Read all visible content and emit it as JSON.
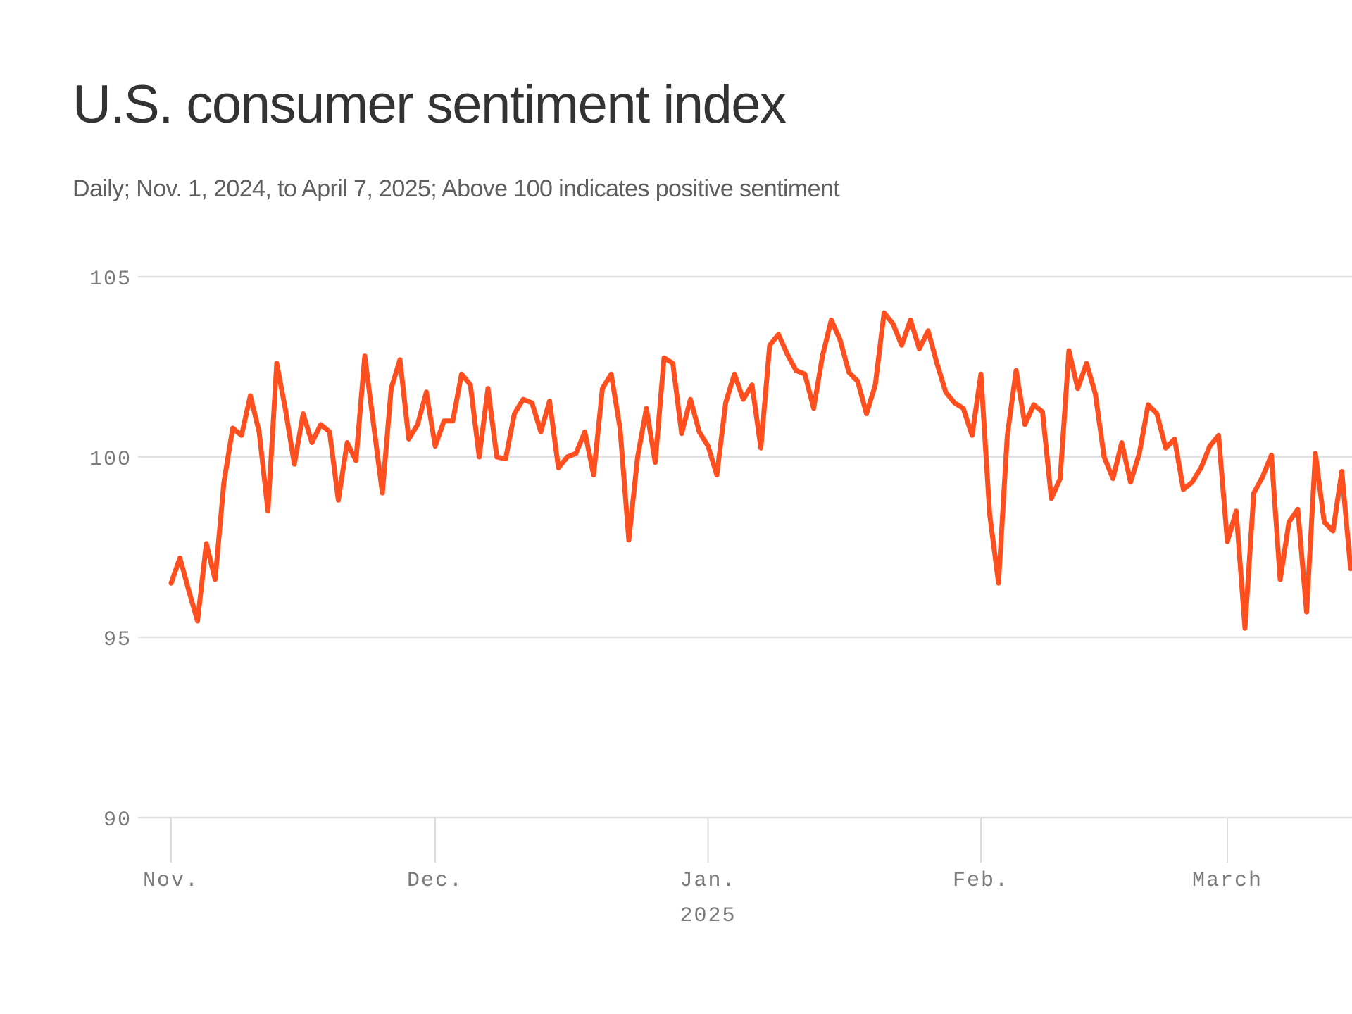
{
  "header": {
    "title": "U.S. consumer sentiment index",
    "subtitle": "Daily; Nov. 1, 2024, to April 7, 2025; Above 100 indicates positive sentiment"
  },
  "colors": {
    "series": "#ff4f1f",
    "gridline": "#e1e1e1",
    "axis_text": "#7b7b7b",
    "title_text": "#333333",
    "subtitle_text": "#5f5f5f"
  },
  "chart_data": {
    "type": "line",
    "title": "U.S. consumer sentiment index",
    "subtitle": "Daily; Nov. 1, 2024, to April 7, 2025; Above 100 indicates positive sentiment",
    "xlabel": "",
    "ylabel": "",
    "x_start_date": "2024-11-01",
    "x_unit": "day",
    "ylim": [
      90,
      105
    ],
    "grid": true,
    "legend": "none",
    "y_ticks": [
      {
        "value": 105,
        "label": "105"
      },
      {
        "value": 100,
        "label": "100"
      },
      {
        "value": 95,
        "label": "95"
      },
      {
        "value": 90,
        "label": "90"
      }
    ],
    "x_ticks": [
      {
        "day_index": 0,
        "label": "Nov.",
        "sublabel": ""
      },
      {
        "day_index": 30,
        "label": "Dec.",
        "sublabel": ""
      },
      {
        "day_index": 61,
        "label": "Jan.",
        "sublabel": "2025"
      },
      {
        "day_index": 92,
        "label": "Feb.",
        "sublabel": ""
      },
      {
        "day_index": 120,
        "label": "March",
        "sublabel": ""
      }
    ],
    "series": [
      {
        "name": "Consumer sentiment index",
        "values": [
          96.5,
          97.2,
          96.3,
          95.45,
          97.6,
          96.6,
          99.3,
          100.8,
          100.6,
          101.7,
          100.7,
          98.5,
          102.6,
          101.3,
          99.8,
          101.2,
          100.4,
          100.9,
          100.7,
          98.8,
          100.4,
          99.9,
          102.8,
          100.9,
          99.0,
          101.9,
          102.7,
          100.5,
          100.9,
          101.8,
          100.3,
          101.0,
          101.0,
          102.3,
          102.0,
          100.0,
          101.9,
          100.0,
          99.95,
          101.2,
          101.6,
          101.5,
          100.7,
          101.55,
          99.7,
          100.0,
          100.1,
          100.7,
          99.5,
          101.9,
          102.3,
          100.8,
          97.7,
          100.0,
          101.35,
          99.85,
          102.75,
          102.6,
          100.65,
          101.6,
          100.7,
          100.3,
          99.5,
          101.5,
          102.3,
          101.6,
          102.0,
          100.25,
          103.1,
          103.4,
          102.85,
          102.4,
          102.3,
          101.35,
          102.8,
          103.8,
          103.25,
          102.35,
          102.1,
          101.2,
          102.0,
          104.0,
          103.7,
          103.1,
          103.8,
          103.0,
          103.5,
          102.6,
          101.8,
          101.5,
          101.35,
          100.6,
          102.3,
          98.4,
          96.5,
          100.6,
          102.4,
          100.9,
          101.45,
          101.25,
          98.85,
          99.4,
          102.95,
          101.9,
          102.6,
          101.75,
          100.0,
          99.4,
          100.4,
          99.3,
          100.1,
          101.45,
          101.2,
          100.25,
          100.5,
          99.1,
          99.3,
          99.7,
          100.3,
          100.6,
          97.65,
          98.5,
          95.25,
          99.0,
          99.45,
          100.05,
          96.6,
          98.2,
          98.55,
          95.7,
          100.1,
          98.2,
          97.95,
          99.6,
          96.9
        ]
      }
    ]
  }
}
